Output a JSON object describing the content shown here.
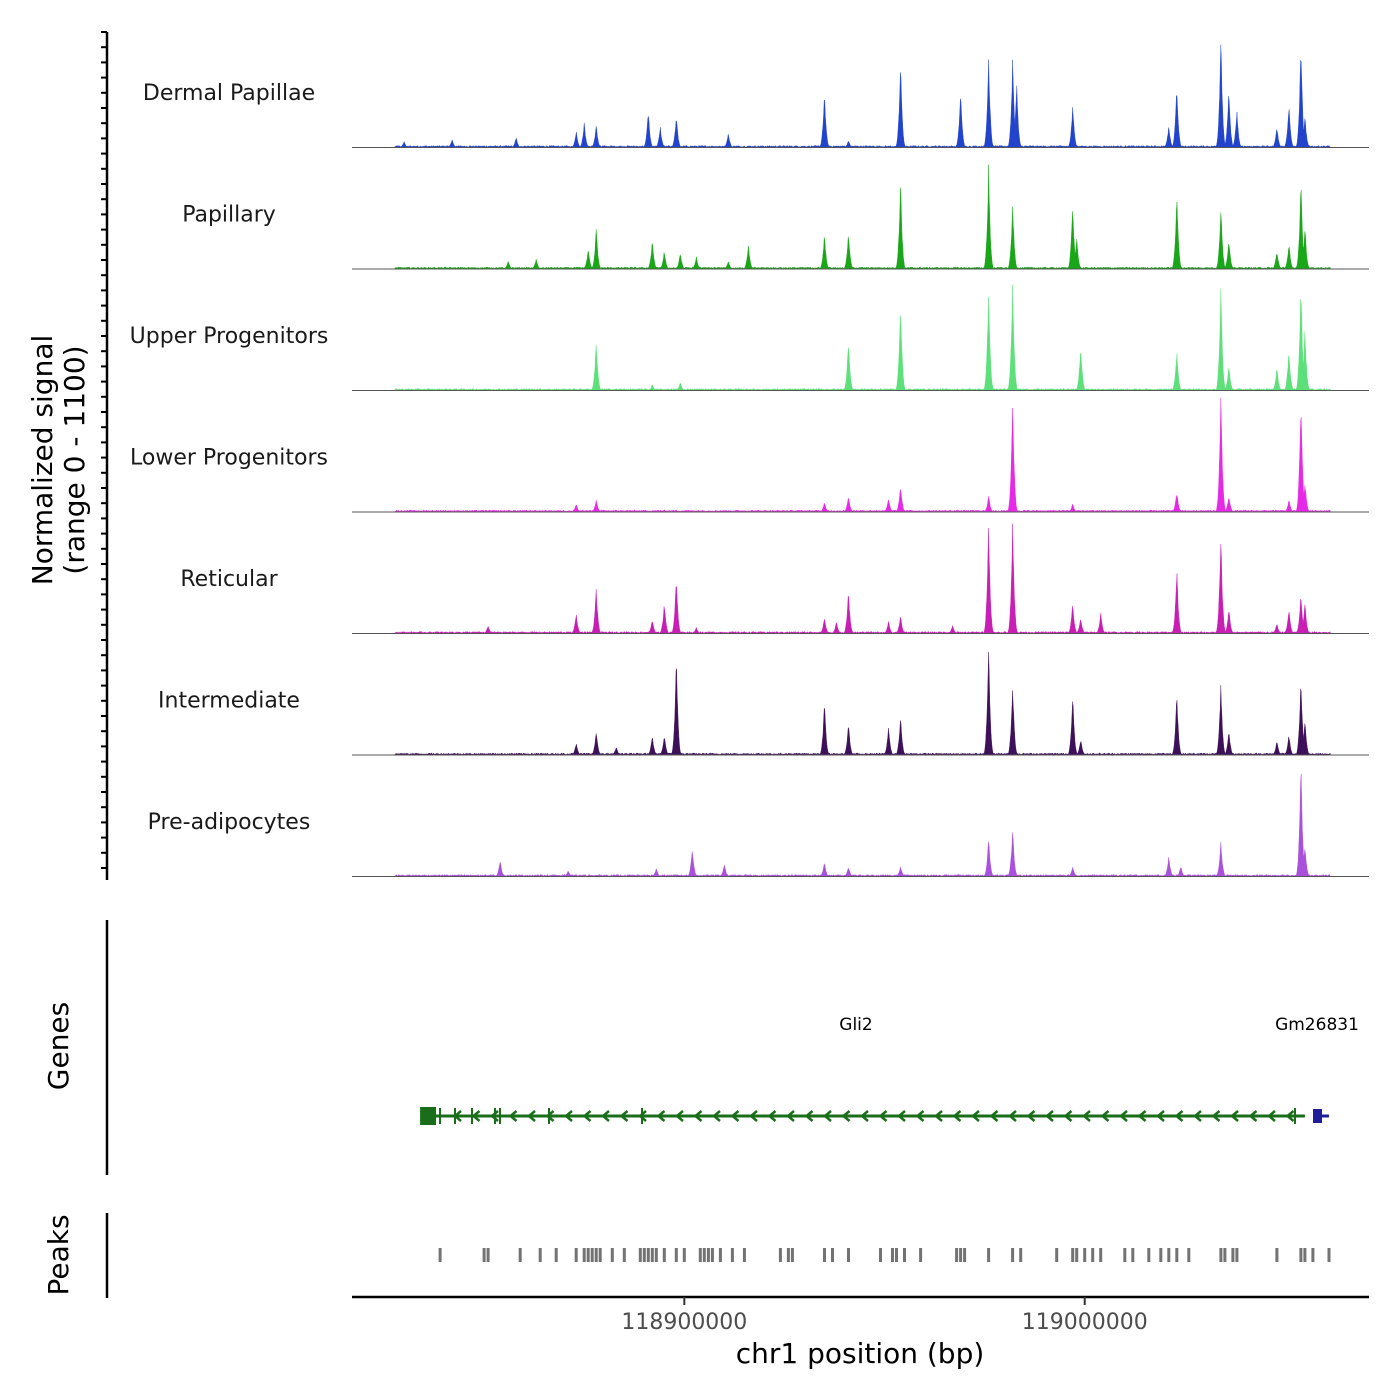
{
  "chart_data": {
    "type": "area",
    "title": "",
    "xlabel": "chr1 position (bp)",
    "ylabel_line1": "Normalized signal",
    "ylabel_line2": "(range 0 - 1100)",
    "y_range": [
      0,
      1100
    ],
    "xlim": [
      118817000,
      119071000
    ],
    "x_ticks": [
      {
        "value": 118900000,
        "label": "118900000"
      },
      {
        "value": 119000000,
        "label": "119000000"
      }
    ],
    "panel_labels": {
      "genes": "Genes",
      "peaks": "Peaks"
    },
    "series": [
      {
        "name": "Dermal Papillae",
        "color": "#2244cc",
        "peaks": [
          [
            118830000,
            60
          ],
          [
            118842000,
            80
          ],
          [
            118858000,
            100
          ],
          [
            118873000,
            160
          ],
          [
            118875000,
            240
          ],
          [
            118878000,
            220
          ],
          [
            118891000,
            360
          ],
          [
            118894000,
            200
          ],
          [
            118898000,
            320
          ],
          [
            118911000,
            140
          ],
          [
            118935000,
            540
          ],
          [
            118941000,
            70
          ],
          [
            118954000,
            840
          ],
          [
            118969000,
            560
          ],
          [
            118976000,
            900
          ],
          [
            118982000,
            840
          ],
          [
            118983000,
            640
          ],
          [
            118997000,
            420
          ],
          [
            119021000,
            220
          ],
          [
            119023000,
            600
          ],
          [
            119034000,
            1100
          ],
          [
            119036000,
            560
          ],
          [
            119038000,
            360
          ],
          [
            119048000,
            200
          ],
          [
            119051000,
            420
          ],
          [
            119054000,
            1050
          ],
          [
            119055000,
            320
          ]
        ]
      },
      {
        "name": "Papillary",
        "color": "#19a619",
        "peaks": [
          [
            118856000,
            80
          ],
          [
            118863000,
            100
          ],
          [
            118876000,
            200
          ],
          [
            118878000,
            400
          ],
          [
            118892000,
            280
          ],
          [
            118895000,
            180
          ],
          [
            118899000,
            160
          ],
          [
            118903000,
            120
          ],
          [
            118911000,
            80
          ],
          [
            118916000,
            240
          ],
          [
            118935000,
            340
          ],
          [
            118941000,
            360
          ],
          [
            118954000,
            880
          ],
          [
            118976000,
            1000
          ],
          [
            118982000,
            640
          ],
          [
            118997000,
            660
          ],
          [
            118998000,
            300
          ],
          [
            119023000,
            760
          ],
          [
            119034000,
            620
          ],
          [
            119036000,
            300
          ],
          [
            119048000,
            180
          ],
          [
            119051000,
            260
          ],
          [
            119054000,
            860
          ],
          [
            119055000,
            420
          ]
        ]
      },
      {
        "name": "Upper Progenitors",
        "color": "#5de07a",
        "peaks": [
          [
            118878000,
            500
          ],
          [
            118892000,
            60
          ],
          [
            118899000,
            80
          ],
          [
            118941000,
            500
          ],
          [
            118954000,
            880
          ],
          [
            118976000,
            1000
          ],
          [
            118982000,
            1100
          ],
          [
            118999000,
            440
          ],
          [
            119023000,
            380
          ],
          [
            119034000,
            1000
          ],
          [
            119036000,
            240
          ],
          [
            119048000,
            220
          ],
          [
            119051000,
            400
          ],
          [
            119054000,
            1100
          ],
          [
            119055000,
            600
          ]
        ]
      },
      {
        "name": "Lower Progenitors",
        "color": "#e629e6",
        "peaks": [
          [
            118873000,
            80
          ],
          [
            118878000,
            120
          ],
          [
            118935000,
            100
          ],
          [
            118941000,
            160
          ],
          [
            118951000,
            140
          ],
          [
            118954000,
            260
          ],
          [
            118976000,
            160
          ],
          [
            118982000,
            1100
          ],
          [
            118997000,
            80
          ],
          [
            119023000,
            200
          ],
          [
            119034000,
            1100
          ],
          [
            119036000,
            160
          ],
          [
            119051000,
            120
          ],
          [
            119054000,
            1100
          ],
          [
            119055000,
            300
          ]
        ]
      },
      {
        "name": "Reticular",
        "color": "#c81eb4",
        "peaks": [
          [
            118851000,
            80
          ],
          [
            118873000,
            200
          ],
          [
            118878000,
            440
          ],
          [
            118892000,
            140
          ],
          [
            118895000,
            300
          ],
          [
            118898000,
            560
          ],
          [
            118903000,
            60
          ],
          [
            118935000,
            160
          ],
          [
            118938000,
            120
          ],
          [
            118941000,
            420
          ],
          [
            118951000,
            120
          ],
          [
            118954000,
            180
          ],
          [
            118967000,
            80
          ],
          [
            118976000,
            1100
          ],
          [
            118982000,
            1100
          ],
          [
            118997000,
            300
          ],
          [
            118999000,
            160
          ],
          [
            119004000,
            200
          ],
          [
            119023000,
            620
          ],
          [
            119034000,
            1000
          ],
          [
            119036000,
            240
          ],
          [
            119048000,
            100
          ],
          [
            119051000,
            240
          ],
          [
            119054000,
            400
          ],
          [
            119055000,
            300
          ]
        ]
      },
      {
        "name": "Intermediate",
        "color": "#3d1159",
        "peaks": [
          [
            118873000,
            120
          ],
          [
            118878000,
            240
          ],
          [
            118883000,
            80
          ],
          [
            118892000,
            200
          ],
          [
            118895000,
            200
          ],
          [
            118898000,
            980
          ],
          [
            118935000,
            520
          ],
          [
            118941000,
            320
          ],
          [
            118951000,
            280
          ],
          [
            118954000,
            380
          ],
          [
            118976000,
            1100
          ],
          [
            118982000,
            720
          ],
          [
            118997000,
            600
          ],
          [
            118999000,
            160
          ],
          [
            119023000,
            620
          ],
          [
            119034000,
            680
          ],
          [
            119036000,
            240
          ],
          [
            119048000,
            140
          ],
          [
            119051000,
            200
          ],
          [
            119054000,
            760
          ],
          [
            119055000,
            340
          ]
        ]
      },
      {
        "name": "Pre-adipocytes",
        "color": "#a950dc",
        "peaks": [
          [
            118854000,
            160
          ],
          [
            118871000,
            60
          ],
          [
            118893000,
            80
          ],
          [
            118902000,
            280
          ],
          [
            118910000,
            120
          ],
          [
            118935000,
            140
          ],
          [
            118941000,
            100
          ],
          [
            118954000,
            100
          ],
          [
            118976000,
            380
          ],
          [
            118982000,
            480
          ],
          [
            118997000,
            100
          ],
          [
            119021000,
            200
          ],
          [
            119024000,
            100
          ],
          [
            119034000,
            340
          ],
          [
            119054000,
            1100
          ],
          [
            119055000,
            300
          ]
        ]
      }
    ],
    "genes": [
      {
        "name": "Gli2",
        "strand": "-",
        "start": 118836000,
        "end": 119055000,
        "color": "#1a6e1a"
      },
      {
        "name": "Gm26831",
        "strand": "-",
        "start": 119059000,
        "end": 119061000,
        "color": "#1f1f99"
      }
    ],
    "peaks_track": {
      "color": "#737373",
      "positions": [
        118839000,
        118850000,
        118851000,
        118859000,
        118864000,
        118868000,
        118873000,
        118875000,
        118876000,
        118877000,
        118878000,
        118879000,
        118882000,
        118885000,
        118889000,
        118890000,
        118891000,
        118892000,
        118893000,
        118895000,
        118898000,
        118900000,
        118904000,
        118905000,
        118906000,
        118907000,
        118909000,
        118912000,
        118915000,
        118924000,
        118926000,
        118927000,
        118935000,
        118937000,
        118941000,
        118949000,
        118952000,
        118953000,
        118955000,
        118959000,
        118968000,
        118969000,
        118970000,
        118976000,
        118982000,
        118984000,
        118993000,
        118997000,
        118998000,
        119000000,
        119002000,
        119004000,
        119010000,
        119012000,
        119016000,
        119019000,
        119021000,
        119023000,
        119026000,
        119034000,
        119035000,
        119037000,
        119038000,
        119048000,
        119054000,
        119055000,
        119057000,
        119061000
      ]
    }
  }
}
